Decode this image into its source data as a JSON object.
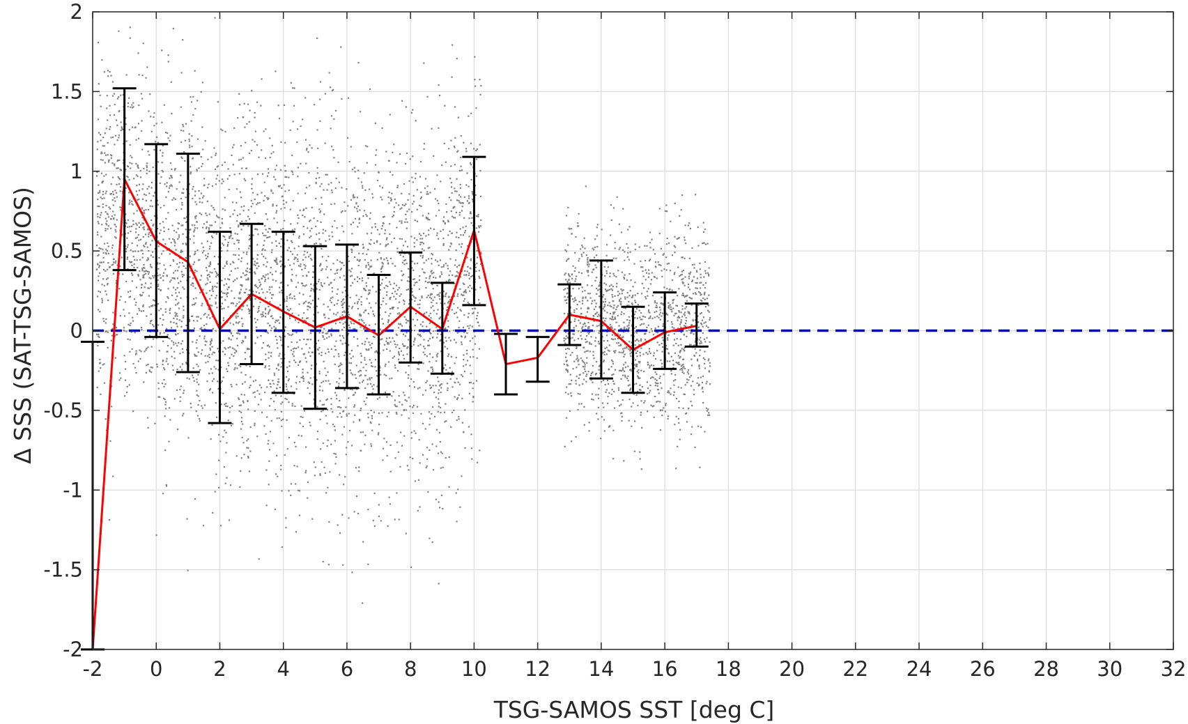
{
  "chart_data": {
    "type": "scatter",
    "title": "",
    "xlabel": "TSG-SAMOS SST [deg C]",
    "ylabel": "Δ SSS (SAT-TSG-SAMOS)",
    "xlim": [
      -2,
      32
    ],
    "ylim": [
      -2,
      2
    ],
    "xticks": [
      -2,
      0,
      2,
      4,
      6,
      8,
      10,
      12,
      14,
      16,
      18,
      20,
      22,
      24,
      26,
      28,
      30,
      32
    ],
    "xtick_labels": [
      "-2",
      "0",
      "2",
      "4",
      "6",
      "8",
      "10",
      "12",
      "14",
      "16",
      "18",
      "20",
      "22",
      "24",
      "26",
      "28",
      "30",
      "32"
    ],
    "yticks": [
      -2,
      -1.5,
      -1,
      -0.5,
      0,
      0.5,
      1,
      1.5,
      2
    ],
    "ytick_labels": [
      "-2",
      "-1.5",
      "-1",
      "-0.5",
      "0",
      "0.5",
      "1",
      "1.5",
      "2"
    ],
    "grid": true,
    "colors": {
      "scatter": "#808080",
      "mean_line": "#ff0000",
      "error_bars": "#000000",
      "zero_line": "#0000e0",
      "grid": "#dcdcdc",
      "axes": "#262626"
    },
    "scatter_clusters": [
      {
        "x_range": [
          -1.9,
          10.2
        ],
        "center": 0.25,
        "spread": 0.55,
        "density": 4200
      },
      {
        "x_range": [
          12.8,
          17.4
        ],
        "center": 0.05,
        "spread": 0.3,
        "density": 1400
      }
    ],
    "mean_series": {
      "x": [
        -2,
        -1,
        0,
        1,
        2,
        3,
        4,
        5,
        6,
        7,
        8,
        9,
        10,
        11,
        12,
        13,
        14,
        15,
        16,
        17
      ],
      "y": [
        -2.0,
        0.95,
        0.56,
        0.43,
        0.01,
        0.23,
        0.12,
        0.02,
        0.09,
        -0.03,
        0.15,
        0.01,
        0.63,
        -0.21,
        -0.17,
        0.1,
        0.06,
        -0.12,
        -0.01,
        0.03
      ]
    },
    "error_bars": [
      {
        "x": -2,
        "low": -2.0,
        "high": -0.07
      },
      {
        "x": -1,
        "low": 0.38,
        "high": 1.52
      },
      {
        "x": 0,
        "low": -0.04,
        "high": 1.17
      },
      {
        "x": 1,
        "low": -0.26,
        "high": 1.11
      },
      {
        "x": 2,
        "low": -0.58,
        "high": 0.62
      },
      {
        "x": 3,
        "low": -0.21,
        "high": 0.67
      },
      {
        "x": 4,
        "low": -0.39,
        "high": 0.62
      },
      {
        "x": 5,
        "low": -0.49,
        "high": 0.53
      },
      {
        "x": 6,
        "low": -0.36,
        "high": 0.54
      },
      {
        "x": 7,
        "low": -0.4,
        "high": 0.35
      },
      {
        "x": 8,
        "low": -0.2,
        "high": 0.49
      },
      {
        "x": 9,
        "low": -0.27,
        "high": 0.3
      },
      {
        "x": 10,
        "low": 0.16,
        "high": 1.09
      },
      {
        "x": 11,
        "low": -0.4,
        "high": -0.02
      },
      {
        "x": 12,
        "low": -0.32,
        "high": -0.04
      },
      {
        "x": 13,
        "low": -0.09,
        "high": 0.29
      },
      {
        "x": 14,
        "low": -0.3,
        "high": 0.44
      },
      {
        "x": 15,
        "low": -0.39,
        "high": 0.15
      },
      {
        "x": 16,
        "low": -0.24,
        "high": 0.24
      },
      {
        "x": 17,
        "low": -0.1,
        "high": 0.17
      }
    ],
    "reference_line": {
      "y": 0,
      "style": "dashed"
    }
  }
}
